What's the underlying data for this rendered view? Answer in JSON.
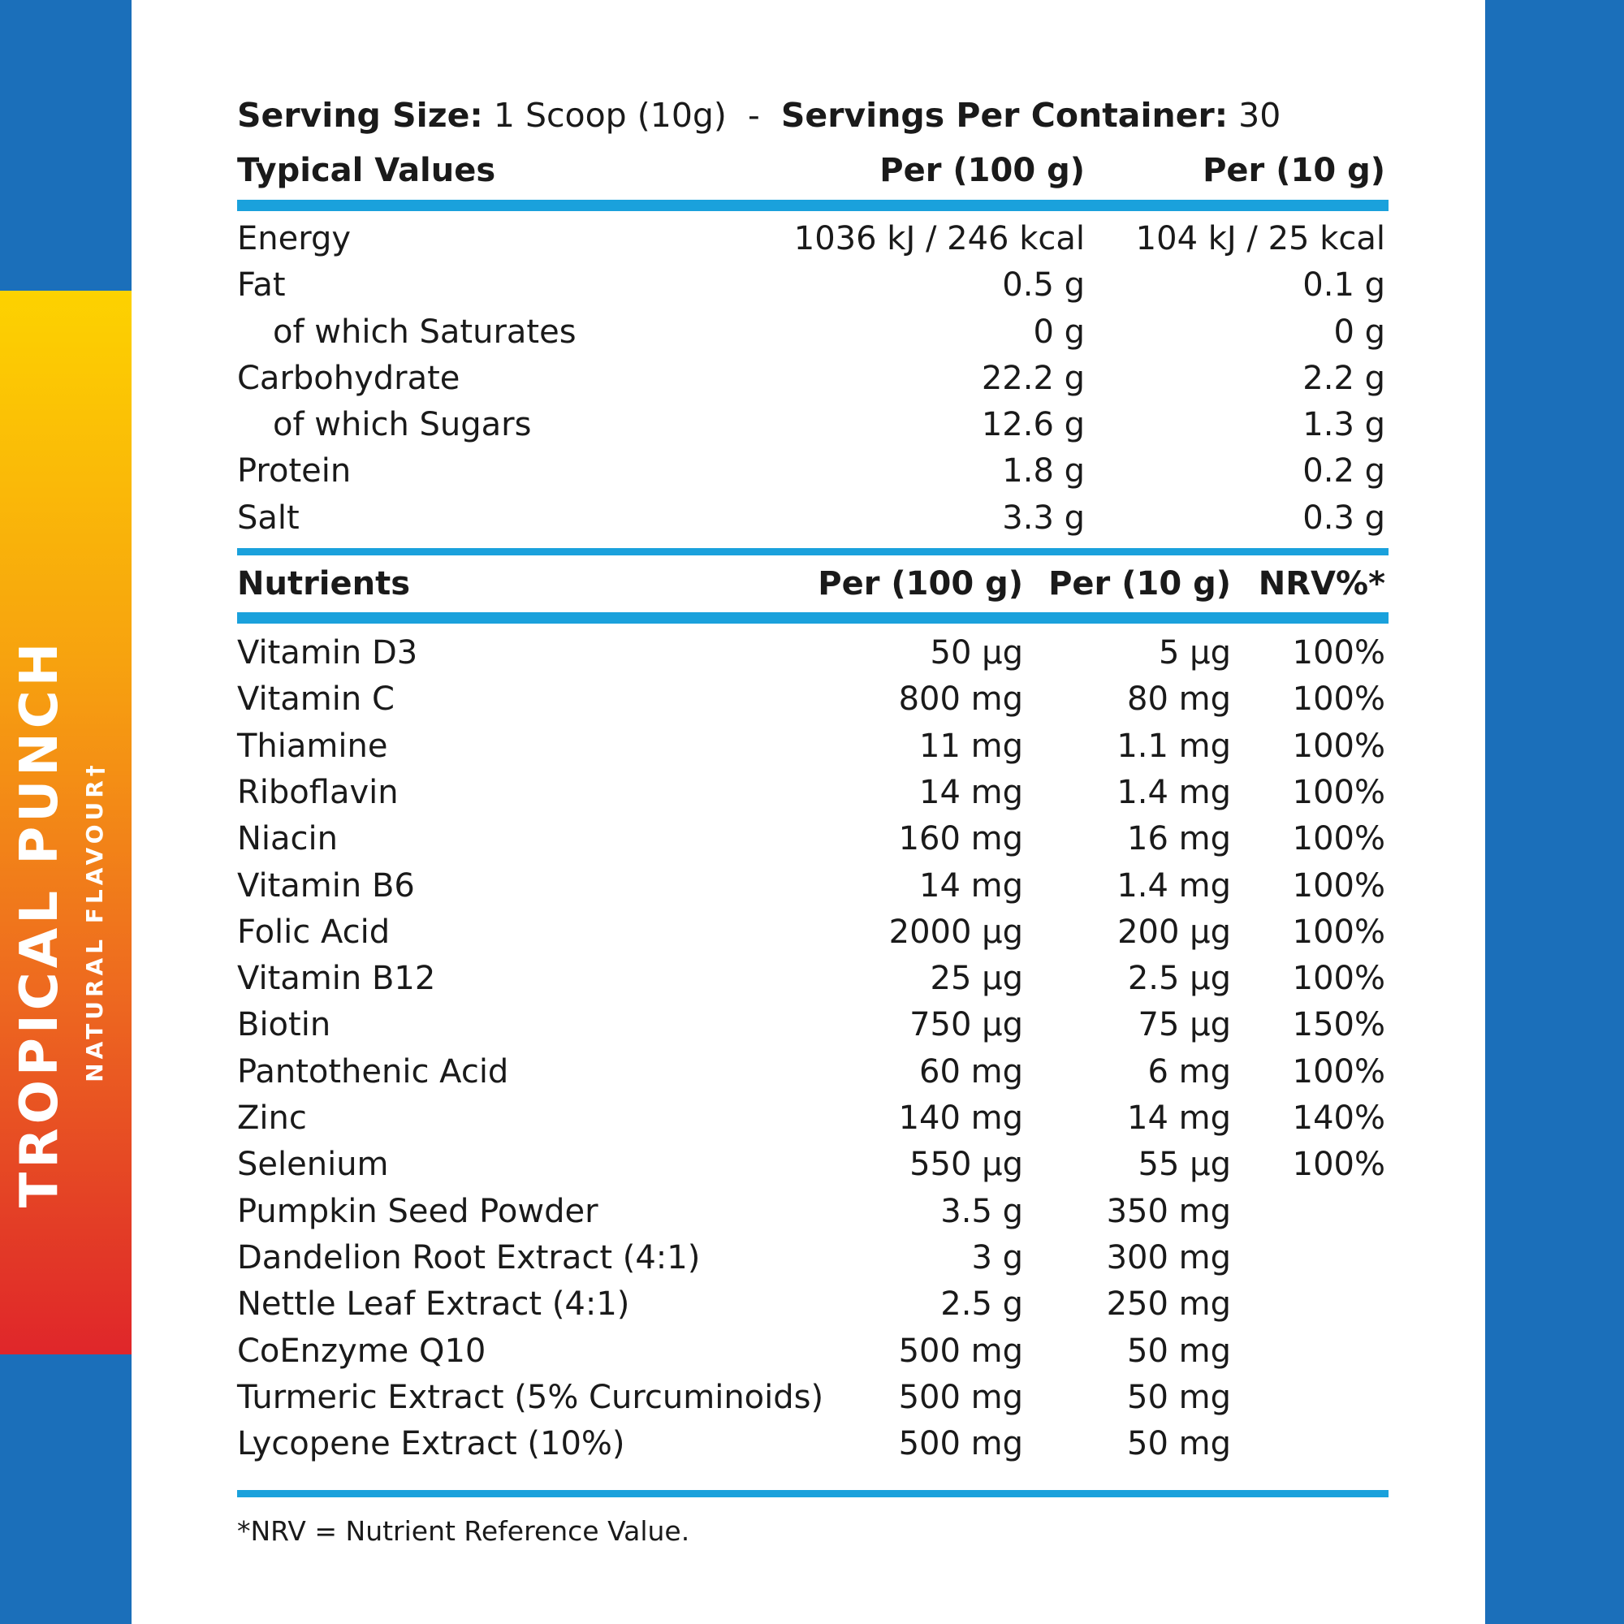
{
  "flavour": {
    "name": "TROPICAL PUNCH",
    "subtitle": "NATURAL FLAVOUR†"
  },
  "serving": {
    "size_label": "Serving Size:",
    "size_value": " 1 Scoop (10g)  -  ",
    "per_container_label": "Servings Per Container:",
    "per_container_value": " 30"
  },
  "typical": {
    "headers": [
      "Typical Values",
      "Per (100 g)",
      "Per (10 g)"
    ],
    "rows": [
      {
        "name": "Energy",
        "per100": "1036 kJ / 246 kcal",
        "per10": "104 kJ / 25 kcal"
      },
      {
        "name": "Fat",
        "per100": "0.5 g",
        "per10": "0.1 g"
      },
      {
        "name": "of which Saturates",
        "per100": "0 g",
        "per10": "0 g"
      },
      {
        "name": "Carbohydrate",
        "per100": "22.2 g",
        "per10": "2.2 g"
      },
      {
        "name": "of which Sugars",
        "per100": "12.6 g",
        "per10": "1.3 g"
      },
      {
        "name": "Protein",
        "per100": "1.8 g",
        "per10": "0.2 g"
      },
      {
        "name": "Salt",
        "per100": "3.3 g",
        "per10": "0.3 g"
      }
    ]
  },
  "nutrients": {
    "headers": [
      "Nutrients",
      "Per (100 g)",
      "Per (10 g)",
      "NRV%*"
    ],
    "rows": [
      {
        "name": "Vitamin D3",
        "per100": "50 µg",
        "per10": "5 µg",
        "nrv": "100%"
      },
      {
        "name": "Vitamin C",
        "per100": "800 mg",
        "per10": "80 mg",
        "nrv": "100%"
      },
      {
        "name": "Thiamine",
        "per100": "11 mg",
        "per10": "1.1 mg",
        "nrv": "100%"
      },
      {
        "name": "Riboflavin",
        "per100": "14 mg",
        "per10": "1.4 mg",
        "nrv": "100%"
      },
      {
        "name": "Niacin",
        "per100": "160 mg",
        "per10": "16 mg",
        "nrv": "100%"
      },
      {
        "name": "Vitamin B6",
        "per100": "14 mg",
        "per10": "1.4 mg",
        "nrv": "100%"
      },
      {
        "name": "Folic Acid",
        "per100": "2000 µg",
        "per10": "200 µg",
        "nrv": "100%"
      },
      {
        "name": "Vitamin B12",
        "per100": "25 µg",
        "per10": "2.5 µg",
        "nrv": "100%"
      },
      {
        "name": "Biotin",
        "per100": "750 µg",
        "per10": "75 µg",
        "nrv": "150%"
      },
      {
        "name": "Pantothenic Acid",
        "per100": "60 mg",
        "per10": "6 mg",
        "nrv": "100%"
      },
      {
        "name": "Zinc",
        "per100": "140 mg",
        "per10": "14 mg",
        "nrv": "140%"
      },
      {
        "name": "Selenium",
        "per100": "550 µg",
        "per10": "55 µg",
        "nrv": "100%"
      },
      {
        "name": "Pumpkin Seed Powder",
        "per100": "3.5 g",
        "per10": "350 mg",
        "nrv": ""
      },
      {
        "name": "Dandelion Root Extract (4:1)",
        "per100": "3 g",
        "per10": "300 mg",
        "nrv": ""
      },
      {
        "name": "Nettle Leaf Extract (4:1)",
        "per100": "2.5 g",
        "per10": "250 mg",
        "nrv": ""
      },
      {
        "name": "CoEnzyme Q10",
        "per100": "500 mg",
        "per10": "50 mg",
        "nrv": ""
      },
      {
        "name": "Turmeric Extract (5% Curcuminoids)",
        "per100": "500 mg",
        "per10": "50 mg",
        "nrv": ""
      },
      {
        "name": "Lycopene Extract (10%)",
        "per100": "500 mg",
        "per10": "50 mg",
        "nrv": ""
      }
    ]
  },
  "footnote": "*NRV = Nutrient Reference Value.",
  "colors": {
    "side_blue": "#1b6fba",
    "rule_blue": "#1aa1dc",
    "gradient_top": "#fdd200",
    "gradient_bottom": "#e0262a"
  }
}
